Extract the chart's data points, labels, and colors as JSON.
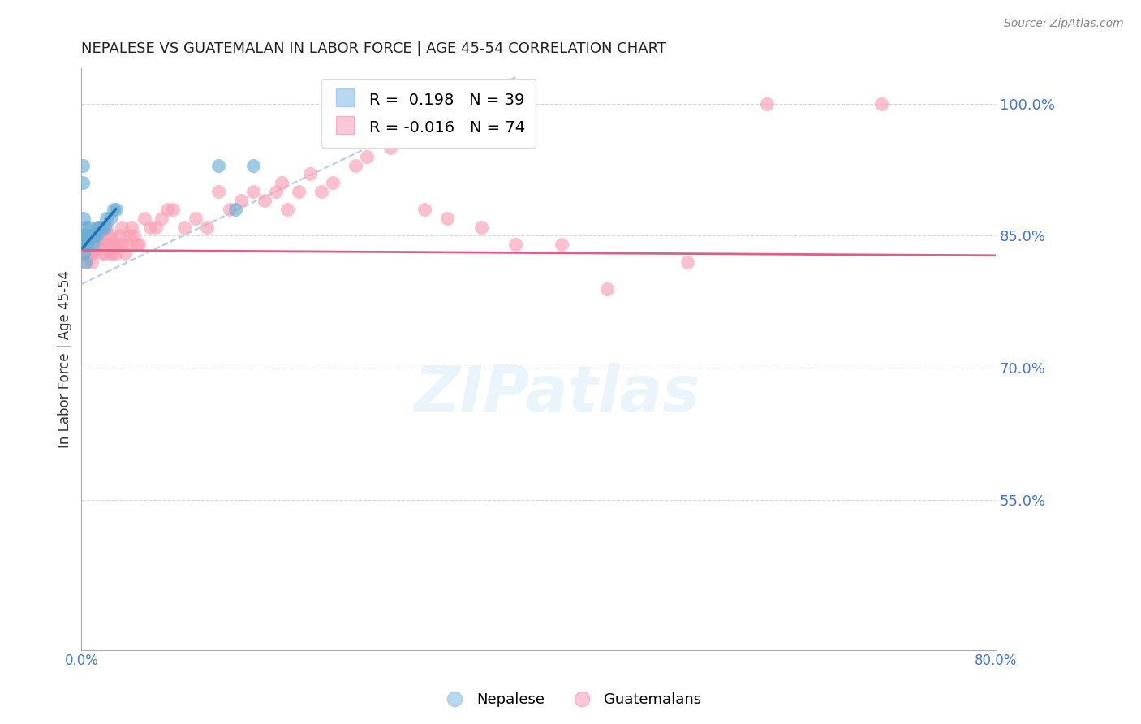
{
  "title": "NEPALESE VS GUATEMALAN IN LABOR FORCE | AGE 45-54 CORRELATION CHART",
  "source": "Source: ZipAtlas.com",
  "ylabel": "In Labor Force | Age 45-54",
  "xlim": [
    0.0,
    0.8
  ],
  "ylim": [
    0.38,
    1.04
  ],
  "right_yticks": [
    1.0,
    0.85,
    0.7,
    0.55
  ],
  "right_yticklabels": [
    "100.0%",
    "85.0%",
    "70.0%",
    "55.0%"
  ],
  "xticks": [
    0.0,
    0.1,
    0.2,
    0.3,
    0.4,
    0.5,
    0.6,
    0.7,
    0.8
  ],
  "xticklabels": [
    "0.0%",
    "",
    "",
    "",
    "",
    "",
    "",
    "",
    "80.0%"
  ],
  "nepalese_R": 0.198,
  "nepalese_N": 39,
  "guatemalan_R": -0.016,
  "guatemalan_N": 74,
  "nepalese_color": "#6baed6",
  "guatemalan_color": "#fa9fb5",
  "nepalese_line_color": "#2171b5",
  "guatemalan_line_color": "#e05c8a",
  "ref_line_color": "#aec8e0",
  "legend_nepalese": "Nepalese",
  "legend_guatemalans": "Guatemalans",
  "watermark": "ZIPatlas",
  "background_color": "#ffffff",
  "grid_color": "#cccccc",
  "axis_label_color": "#4477cc",
  "title_color": "#222222",
  "nepalese_x": [
    0.001,
    0.001,
    0.002,
    0.002,
    0.002,
    0.003,
    0.003,
    0.003,
    0.003,
    0.003,
    0.004,
    0.004,
    0.004,
    0.005,
    0.005,
    0.005,
    0.005,
    0.006,
    0.006,
    0.007,
    0.007,
    0.008,
    0.008,
    0.009,
    0.01,
    0.011,
    0.012,
    0.013,
    0.015,
    0.016,
    0.018,
    0.02,
    0.022,
    0.025,
    0.028,
    0.03,
    0.12,
    0.135,
    0.15
  ],
  "nepalese_y": [
    0.93,
    0.91,
    0.87,
    0.85,
    0.83,
    0.86,
    0.85,
    0.85,
    0.84,
    0.82,
    0.85,
    0.85,
    0.84,
    0.85,
    0.85,
    0.84,
    0.84,
    0.85,
    0.85,
    0.86,
    0.85,
    0.85,
    0.85,
    0.85,
    0.84,
    0.85,
    0.85,
    0.85,
    0.86,
    0.86,
    0.86,
    0.86,
    0.87,
    0.87,
    0.88,
    0.88,
    0.93,
    0.88,
    0.93
  ],
  "guatemalan_x": [
    0.001,
    0.002,
    0.003,
    0.004,
    0.005,
    0.006,
    0.007,
    0.008,
    0.009,
    0.01,
    0.011,
    0.012,
    0.013,
    0.014,
    0.015,
    0.016,
    0.017,
    0.018,
    0.019,
    0.02,
    0.021,
    0.022,
    0.023,
    0.024,
    0.025,
    0.026,
    0.027,
    0.028,
    0.03,
    0.031,
    0.033,
    0.034,
    0.035,
    0.036,
    0.038,
    0.04,
    0.042,
    0.044,
    0.046,
    0.048,
    0.05,
    0.055,
    0.06,
    0.065,
    0.07,
    0.075,
    0.08,
    0.09,
    0.1,
    0.11,
    0.12,
    0.13,
    0.14,
    0.15,
    0.16,
    0.17,
    0.175,
    0.18,
    0.19,
    0.2,
    0.21,
    0.22,
    0.24,
    0.25,
    0.27,
    0.3,
    0.32,
    0.35,
    0.38,
    0.42,
    0.46,
    0.53,
    0.6,
    0.7
  ],
  "guatemalan_y": [
    0.83,
    0.84,
    0.83,
    0.82,
    0.84,
    0.83,
    0.84,
    0.83,
    0.82,
    0.83,
    0.84,
    0.84,
    0.85,
    0.86,
    0.85,
    0.85,
    0.84,
    0.83,
    0.84,
    0.83,
    0.84,
    0.86,
    0.85,
    0.84,
    0.83,
    0.85,
    0.83,
    0.84,
    0.83,
    0.84,
    0.85,
    0.84,
    0.86,
    0.84,
    0.83,
    0.84,
    0.85,
    0.86,
    0.85,
    0.84,
    0.84,
    0.87,
    0.86,
    0.86,
    0.87,
    0.88,
    0.88,
    0.86,
    0.87,
    0.86,
    0.9,
    0.88,
    0.89,
    0.9,
    0.89,
    0.9,
    0.91,
    0.88,
    0.9,
    0.92,
    0.9,
    0.91,
    0.93,
    0.94,
    0.95,
    0.88,
    0.87,
    0.86,
    0.84,
    0.84,
    0.79,
    0.82,
    1.0,
    1.0
  ],
  "guatemalan_trend_x": [
    0.001,
    0.8
  ],
  "guatemalan_trend_y": [
    0.8335,
    0.8275
  ],
  "nepalese_trend_x": [
    0.001,
    0.03
  ],
  "nepalese_trend_y": [
    0.836,
    0.88
  ]
}
